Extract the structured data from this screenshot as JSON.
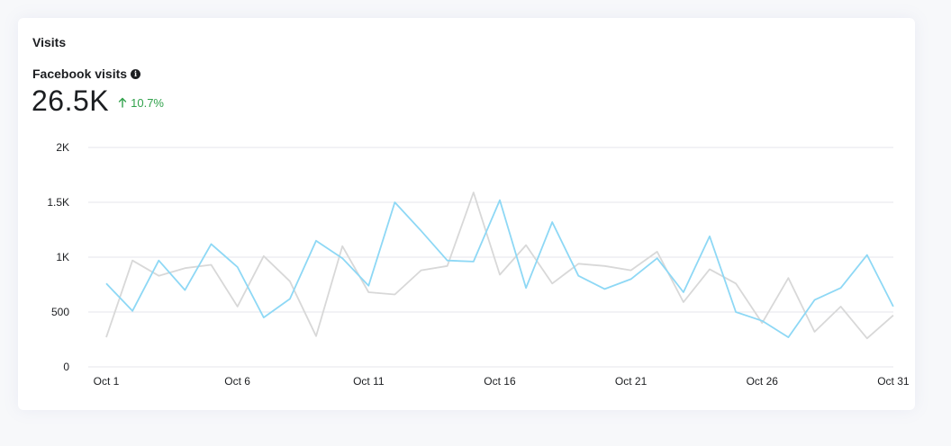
{
  "card": {
    "title": "Visits",
    "metric_label": "Facebook visits",
    "metric_value": "26.5K",
    "metric_change": "10.7%"
  },
  "colors": {
    "current": "#8ed8f5",
    "previous": "#d8d8d8",
    "grid": "#e4e6eb",
    "change_up": "#31a24c"
  },
  "chart_data": {
    "type": "line",
    "title": "",
    "xlabel": "",
    "ylabel": "",
    "ylim": [
      0,
      2000
    ],
    "y_ticks": [
      0,
      500,
      1000,
      1500,
      2000
    ],
    "y_tick_labels": [
      "0",
      "500",
      "1K",
      "1.5K",
      "2K"
    ],
    "x": [
      "Oct 1",
      "Oct 2",
      "Oct 3",
      "Oct 4",
      "Oct 5",
      "Oct 6",
      "Oct 7",
      "Oct 8",
      "Oct 9",
      "Oct 10",
      "Oct 11",
      "Oct 12",
      "Oct 13",
      "Oct 14",
      "Oct 15",
      "Oct 16",
      "Oct 17",
      "Oct 18",
      "Oct 19",
      "Oct 20",
      "Oct 21",
      "Oct 22",
      "Oct 23",
      "Oct 24",
      "Oct 25",
      "Oct 26",
      "Oct 27",
      "Oct 28",
      "Oct 29",
      "Oct 30",
      "Oct 31"
    ],
    "x_tick_labels": [
      "Oct 1",
      "Oct 6",
      "Oct 11",
      "Oct 16",
      "Oct 21",
      "Oct 26",
      "Oct 31"
    ],
    "grid": true,
    "series": [
      {
        "key": "previous",
        "values": [
          270,
          970,
          830,
          900,
          930,
          550,
          1010,
          780,
          280,
          1100,
          680,
          660,
          880,
          920,
          1590,
          840,
          1110,
          760,
          940,
          920,
          880,
          1050,
          590,
          890,
          760,
          400,
          810,
          320,
          550,
          260,
          470
        ]
      },
      {
        "key": "current",
        "values": [
          760,
          510,
          970,
          700,
          1120,
          910,
          450,
          620,
          1150,
          990,
          740,
          1500,
          1240,
          970,
          960,
          1520,
          720,
          1320,
          830,
          710,
          800,
          990,
          680,
          1190,
          500,
          420,
          270,
          610,
          720,
          1020,
          550
        ]
      }
    ]
  }
}
